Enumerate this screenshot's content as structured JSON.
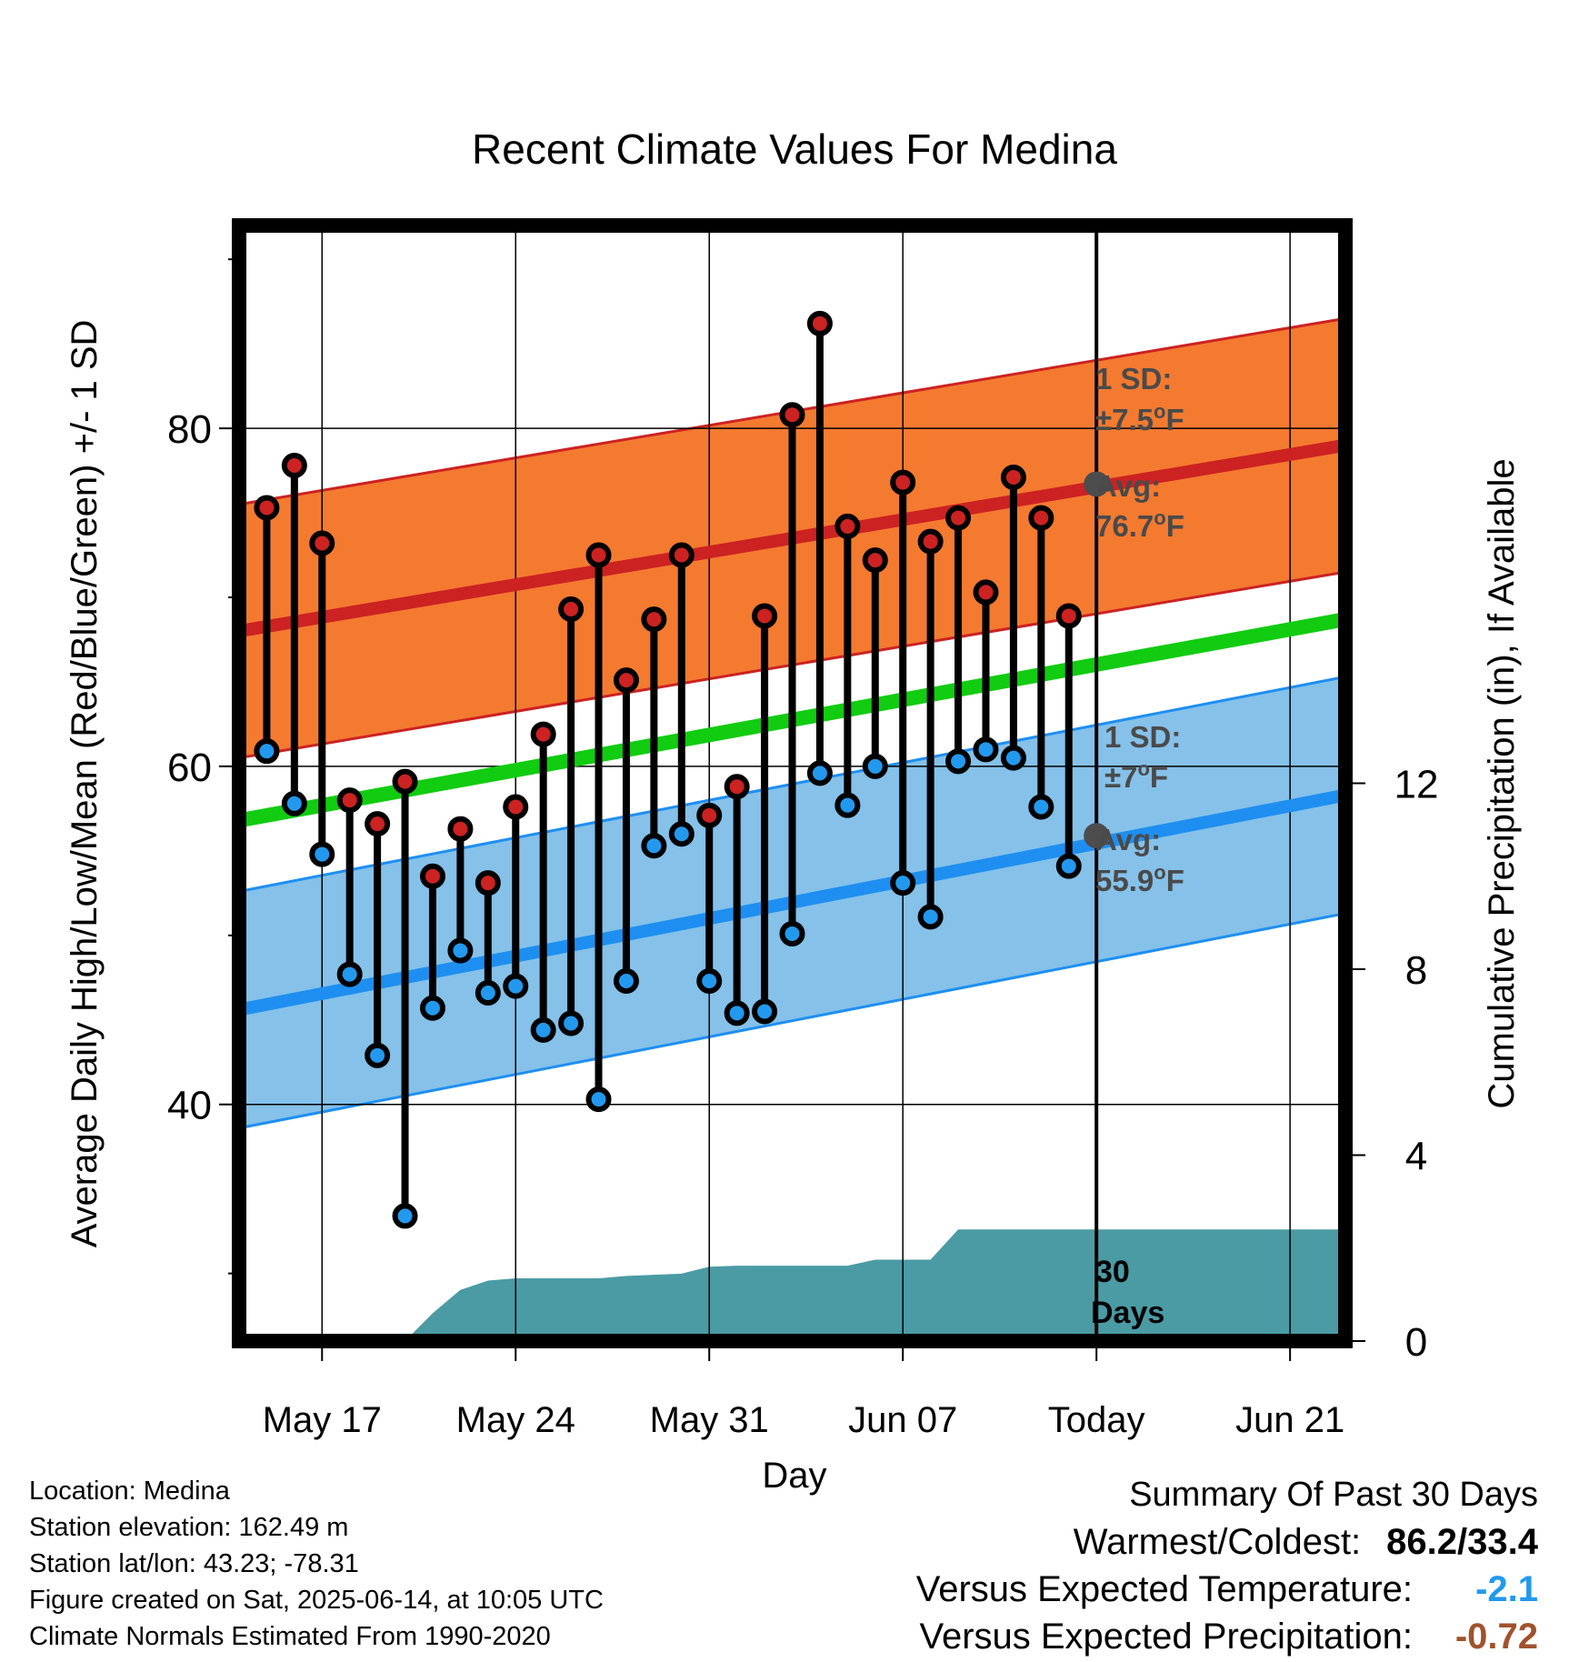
{
  "title": "Recent Climate Values For Medina",
  "chart_data": {
    "type": "line",
    "title": "Recent Climate Values For Medina",
    "xlabel": "Day",
    "ylabel_left": "Average Daily High/Low/Mean (Red/Blue/Green) +/- 1 SD",
    "ylabel_right": "Cumulative Precipitation (in), If Available",
    "xlim": [
      "2025-05-14",
      "2025-06-23"
    ],
    "ylim_left": [
      26,
      92
    ],
    "ylim_right": [
      0,
      24
    ],
    "x_ticks": [
      {
        "date": "2025-05-17",
        "label": "May 17"
      },
      {
        "date": "2025-05-24",
        "label": "May 24"
      },
      {
        "date": "2025-05-31",
        "label": "May 31"
      },
      {
        "date": "2025-06-07",
        "label": "Jun 07"
      },
      {
        "date": "2025-06-14",
        "label": "Today"
      },
      {
        "date": "2025-06-21",
        "label": "Jun 21"
      }
    ],
    "y_ticks_left": [
      40,
      60,
      80
    ],
    "y_ticks_right": [
      0,
      4,
      8,
      12
    ],
    "grid": true,
    "today": "2025-06-14",
    "dates": [
      "2025-05-15",
      "2025-05-16",
      "2025-05-17",
      "2025-05-18",
      "2025-05-19",
      "2025-05-20",
      "2025-05-21",
      "2025-05-22",
      "2025-05-23",
      "2025-05-24",
      "2025-05-25",
      "2025-05-26",
      "2025-05-27",
      "2025-05-28",
      "2025-05-29",
      "2025-05-30",
      "2025-05-31",
      "2025-06-01",
      "2025-06-02",
      "2025-06-03",
      "2025-06-04",
      "2025-06-05",
      "2025-06-06",
      "2025-06-07",
      "2025-06-08",
      "2025-06-09",
      "2025-06-10",
      "2025-06-11",
      "2025-06-12",
      "2025-06-13"
    ],
    "series": [
      {
        "name": "High",
        "color": "#cc2222",
        "values": [
          75.3,
          77.8,
          73.2,
          58.0,
          56.6,
          59.1,
          53.5,
          56.3,
          53.1,
          57.6,
          61.9,
          69.3,
          72.5,
          65.1,
          68.7,
          72.5,
          57.1,
          58.8,
          68.9,
          80.8,
          86.2,
          74.2,
          72.2,
          76.8,
          73.3,
          74.7,
          70.3,
          77.1,
          74.7,
          68.9
        ]
      },
      {
        "name": "Low",
        "color": "#2299ee",
        "values": [
          60.9,
          57.8,
          54.8,
          47.7,
          42.9,
          33.4,
          45.7,
          49.1,
          46.6,
          47.0,
          44.4,
          44.8,
          40.3,
          47.3,
          55.3,
          56.0,
          47.3,
          45.4,
          45.5,
          50.1,
          59.6,
          57.7,
          60.0,
          53.1,
          51.1,
          60.3,
          61.0,
          60.5,
          57.6,
          54.1
        ]
      }
    ],
    "normals": {
      "dates": [
        "2025-05-14",
        "2025-06-23"
      ],
      "high_avg": [
        68.0,
        79.0
      ],
      "high_sd": 7.5,
      "low_avg": [
        45.6,
        58.3
      ],
      "low_sd": 7.0,
      "mean_avg": [
        56.8,
        68.7
      ],
      "colors": {
        "high_band": "#f47a30",
        "high_line": "#cc2222",
        "low_band": "#85c1e9",
        "low_line": "#1e8ff0",
        "mean_line": "#11cc11"
      }
    },
    "precipitation": {
      "color": "#4a9ba4",
      "dates": [
        "2025-05-20",
        "2025-05-21",
        "2025-05-22",
        "2025-05-23",
        "2025-05-24",
        "2025-05-27",
        "2025-05-28",
        "2025-05-30",
        "2025-05-31",
        "2025-06-01",
        "2025-06-05",
        "2025-06-06",
        "2025-06-07",
        "2025-06-08",
        "2025-06-09",
        "2025-06-14",
        "2025-06-23"
      ],
      "values": [
        0.0,
        0.6,
        1.1,
        1.3,
        1.35,
        1.35,
        1.4,
        1.45,
        1.6,
        1.62,
        1.62,
        1.75,
        1.75,
        1.75,
        2.4,
        2.4,
        2.4
      ]
    },
    "annotations": {
      "high_sd_label": "1 SD:",
      "high_sd_value": "±7.5",
      "high_avg_label": "Avg:",
      "high_avg_value": "76.7",
      "low_sd_label": "1 SD:",
      "low_sd_value": "±7",
      "low_avg_label": "Avg:",
      "low_avg_value": "55.9",
      "deg_sup": "o",
      "unit": "F",
      "high_avg_marker": 76.7,
      "low_avg_marker": 55.9,
      "window_label_1": "30",
      "window_label_2": "Days"
    }
  },
  "info": {
    "location": "Location: Medina",
    "elevation": "Station elevation: 162.49 m",
    "latlon": "Station lat/lon: 43.23; -78.31",
    "created": "Figure created on Sat, 2025-06-14, at 10:05 UTC",
    "normals": "Climate Normals Estimated From 1990-2020"
  },
  "summary": {
    "title": "Summary Of Past 30 Days",
    "warm_cold_label": "Warmest/Coldest:",
    "warm_cold_value": "86.2/33.4",
    "temp_label": "Versus Expected Temperature:",
    "temp_value": "-2.1",
    "temp_color": "#2299ee",
    "precip_label": "Versus Expected Precipitation:",
    "precip_value": "-0.72",
    "precip_color": "#a0522d"
  }
}
